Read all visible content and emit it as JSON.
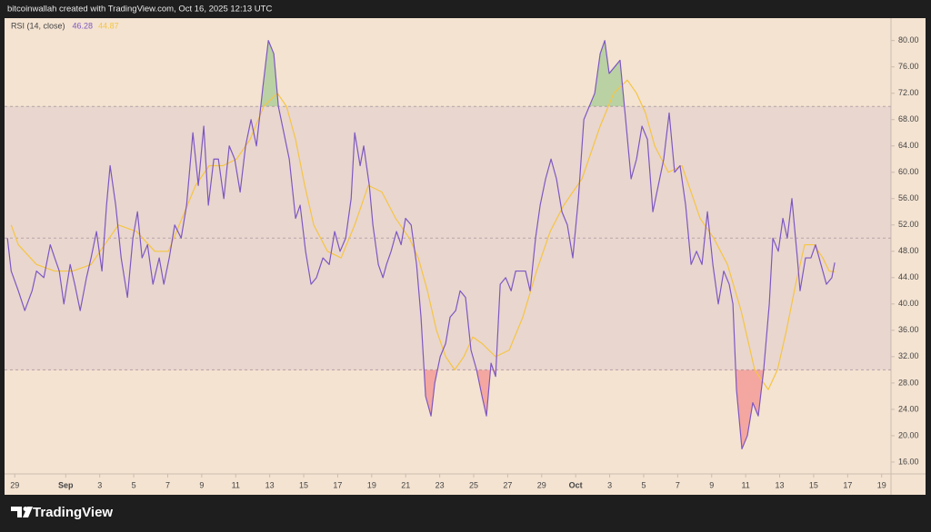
{
  "header": "bitcoinwallah created with TradingView.com, Oct 16, 2025 12:13 UTC",
  "brand": "TradingView",
  "chart_data": {
    "type": "line",
    "legend_title": "RSI (14, close)",
    "xlim": [
      -0.6,
      51.55
    ],
    "ylim": [
      14.2,
      83.4
    ],
    "yticks": [
      {
        "value": 16,
        "label": "16.00"
      },
      {
        "value": 20,
        "label": "20.00"
      },
      {
        "value": 24,
        "label": "24.00"
      },
      {
        "value": 28,
        "label": "28.00"
      },
      {
        "value": 32,
        "label": "32.00"
      },
      {
        "value": 36,
        "label": "36.00"
      },
      {
        "value": 40,
        "label": "40.00"
      },
      {
        "value": 44,
        "label": "44.00"
      },
      {
        "value": 48,
        "label": "48.00"
      },
      {
        "value": 52,
        "label": "52.00"
      },
      {
        "value": 56,
        "label": "56.00"
      },
      {
        "value": 60,
        "label": "60.00"
      },
      {
        "value": 64,
        "label": "64.00"
      },
      {
        "value": 68,
        "label": "68.00"
      },
      {
        "value": 72,
        "label": "72.00"
      },
      {
        "value": 76,
        "label": "76.00"
      },
      {
        "value": 80,
        "label": "80.00"
      }
    ],
    "xticks": [
      {
        "value": 0,
        "label": "29"
      },
      {
        "value": 3,
        "label": "Sep"
      },
      {
        "value": 5,
        "label": "3"
      },
      {
        "value": 7,
        "label": "5"
      },
      {
        "value": 9,
        "label": "7"
      },
      {
        "value": 11,
        "label": "9"
      },
      {
        "value": 13,
        "label": "11"
      },
      {
        "value": 15,
        "label": "13"
      },
      {
        "value": 17,
        "label": "15"
      },
      {
        "value": 19,
        "label": "17"
      },
      {
        "value": 21,
        "label": "19"
      },
      {
        "value": 23,
        "label": "21"
      },
      {
        "value": 25,
        "label": "23"
      },
      {
        "value": 27,
        "label": "25"
      },
      {
        "value": 29,
        "label": "27"
      },
      {
        "value": 31,
        "label": "29"
      },
      {
        "value": 33,
        "label": "Oct"
      },
      {
        "value": 35,
        "label": "3"
      },
      {
        "value": 37,
        "label": "5"
      },
      {
        "value": 39,
        "label": "7"
      },
      {
        "value": 41,
        "label": "9"
      },
      {
        "value": 43,
        "label": "11"
      },
      {
        "value": 45,
        "label": "13"
      },
      {
        "value": 47,
        "label": "15"
      },
      {
        "value": 49,
        "label": "17"
      },
      {
        "value": 51,
        "label": "19"
      }
    ],
    "levels": {
      "upper": 70,
      "middle": 50,
      "lower": 30
    },
    "band_color": "rgba(126,87,194,0.09)",
    "overbought_color": "rgba(76,175,80,0.35)",
    "oversold_color": "rgba(242,54,69,0.35)",
    "series": [
      {
        "color": "#7e57c2",
        "x": [
          -0.43,
          -0.21,
          0.21,
          0.59,
          1.02,
          1.28,
          1.71,
          2.09,
          2.35,
          2.62,
          2.89,
          3.26,
          3.53,
          3.85,
          4.22,
          4.49,
          4.81,
          5.13,
          5.4,
          5.61,
          5.94,
          6.26,
          6.63,
          6.95,
          7.22,
          7.49,
          7.81,
          8.13,
          8.5,
          8.77,
          9.09,
          9.41,
          9.79,
          10.11,
          10.48,
          10.8,
          11.12,
          11.39,
          11.71,
          11.98,
          12.3,
          12.62,
          12.94,
          13.26,
          13.58,
          13.9,
          14.22,
          14.6,
          14.92,
          15.24,
          15.51,
          15.83,
          16.15,
          16.52,
          16.79,
          17.11,
          17.43,
          17.75,
          18.13,
          18.5,
          18.82,
          19.14,
          19.47,
          19.79,
          20.0,
          20.32,
          20.53,
          20.86,
          21.07,
          21.39,
          21.66,
          21.87,
          22.14,
          22.46,
          22.73,
          22.99,
          23.32,
          23.64,
          23.9,
          24.17,
          24.49,
          24.71,
          25.03,
          25.35,
          25.61,
          25.94,
          26.2,
          26.52,
          26.84,
          27.17,
          27.49,
          27.75,
          28.02,
          28.29,
          28.56,
          28.88,
          29.2,
          29.47,
          29.73,
          30.05,
          30.32,
          30.64,
          30.91,
          31.23,
          31.55,
          31.87,
          32.19,
          32.51,
          32.83,
          33.16,
          33.48,
          33.8,
          34.12,
          34.44,
          34.71,
          34.97,
          35.29,
          35.61,
          35.94,
          36.26,
          36.58,
          36.9,
          37.22,
          37.54,
          37.86,
          38.18,
          38.5,
          38.82,
          39.14,
          39.47,
          39.79,
          40.11,
          40.43,
          40.75,
          41.07,
          41.39,
          41.71,
          42.03,
          42.25,
          42.46,
          42.78,
          43.1,
          43.42,
          43.74,
          44.06,
          44.39,
          44.6,
          44.92,
          45.19,
          45.45,
          45.72,
          46.04,
          46.2,
          46.52,
          46.84,
          47.11,
          47.43,
          47.75,
          48.07,
          48.24
        ],
        "values": [
          50,
          45,
          42,
          39,
          42,
          45,
          44,
          49,
          47,
          45,
          40,
          46,
          43,
          39,
          44,
          47,
          51,
          45,
          55,
          61,
          55,
          47,
          41,
          50,
          54,
          47,
          49,
          43,
          47,
          43,
          47,
          52,
          50,
          55,
          66,
          58,
          67,
          55,
          62,
          62,
          56,
          64,
          62,
          57,
          64,
          68,
          64,
          73,
          80,
          78,
          70,
          66,
          62,
          53,
          55,
          48,
          43,
          44,
          47,
          46,
          51,
          48,
          50,
          56,
          66,
          61,
          64,
          58,
          52,
          46,
          44,
          46,
          48,
          51,
          49,
          53,
          52,
          46,
          38,
          26,
          23,
          28,
          32,
          34,
          38,
          39,
          42,
          41,
          33,
          30,
          26,
          23,
          31,
          29,
          43,
          44,
          42,
          45,
          45,
          45,
          42,
          50,
          55,
          59,
          62,
          59,
          54,
          52,
          47,
          56,
          68,
          70,
          72,
          78,
          80,
          75,
          76,
          77,
          68,
          59,
          62,
          67,
          65,
          54,
          58,
          62,
          69,
          60,
          61,
          55,
          46,
          48,
          46,
          54,
          46,
          40,
          45,
          43,
          40,
          27,
          18,
          20,
          25,
          23,
          30,
          40,
          50,
          48,
          53,
          50,
          56,
          47,
          42,
          47,
          47,
          49,
          46,
          43,
          44,
          46.28
        ]
      },
      {
        "color": "#f5c542",
        "x": [
          -0.21,
          0.21,
          1.28,
          2.35,
          3.42,
          4.49,
          5.29,
          6.1,
          7.17,
          8.24,
          9.04,
          9.84,
          10.64,
          11.44,
          12.25,
          13.05,
          13.85,
          14.65,
          15.45,
          15.99,
          16.52,
          17.06,
          17.59,
          18.4,
          19.2,
          20.0,
          20.8,
          21.6,
          22.41,
          23.21,
          23.74,
          24.28,
          24.81,
          25.35,
          25.88,
          26.42,
          26.95,
          27.49,
          28.29,
          29.09,
          29.89,
          30.7,
          31.5,
          32.3,
          33.37,
          34.44,
          35.24,
          36.04,
          36.58,
          37.11,
          37.65,
          38.45,
          39.25,
          39.79,
          40.32,
          41.12,
          41.93,
          42.73,
          43.53,
          44.33,
          44.87,
          45.4,
          45.94,
          46.47,
          47.01,
          47.54,
          47.91,
          48.24
        ],
        "values": [
          52,
          49,
          46,
          45,
          45,
          46,
          49,
          52,
          51,
          48,
          48,
          53,
          58,
          61,
          61,
          62,
          65,
          70,
          72,
          70,
          65,
          58,
          52,
          48,
          47,
          52,
          58,
          57,
          53,
          50,
          47,
          42,
          36,
          32,
          30,
          32,
          35,
          34,
          32,
          33,
          38,
          45,
          51,
          55,
          59,
          67,
          72,
          74,
          72,
          69,
          64,
          60,
          61,
          57,
          53,
          50,
          46,
          39,
          30,
          27,
          30,
          36,
          43,
          49,
          49,
          47,
          45,
          44.87
        ]
      }
    ]
  }
}
